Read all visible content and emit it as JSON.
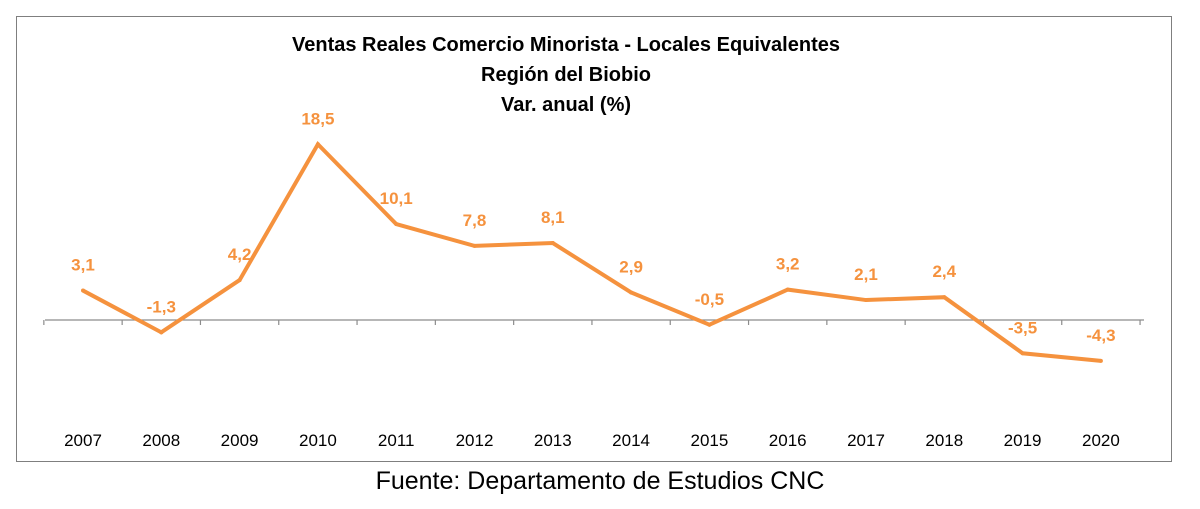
{
  "chart_data": {
    "type": "line",
    "title": [
      "Ventas Reales Comercio Minorista - Locales Equivalentes",
      "Región del Biobio",
      "Var. anual (%)"
    ],
    "categories": [
      "2007",
      "2008",
      "2009",
      "2010",
      "2011",
      "2012",
      "2013",
      "2014",
      "2015",
      "2016",
      "2017",
      "2018",
      "2019",
      "2020"
    ],
    "values": [
      3.1,
      -1.3,
      4.2,
      18.5,
      10.1,
      7.8,
      8.1,
      2.9,
      -0.5,
      3.2,
      2.1,
      2.4,
      -3.5,
      -4.3
    ],
    "labels": [
      "3,1",
      "-1,3",
      "4,2",
      "18,5",
      "10,1",
      "7,8",
      "8,1",
      "2,9",
      "-0,5",
      "3,2",
      "2,1",
      "2,4",
      "-3,5",
      "-4,3"
    ],
    "series_color": "#F5923E",
    "ylim": [
      -12,
      22
    ],
    "grid": false,
    "legend": "none"
  },
  "source": "Fuente: Departamento de Estudios CNC"
}
